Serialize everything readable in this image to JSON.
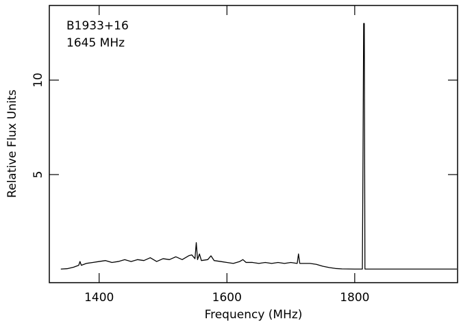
{
  "chart_data": {
    "type": "line",
    "annotations": [
      "B1933+16",
      "1645 MHz"
    ],
    "xlabel": "Frequency (MHz)",
    "ylabel": "Relative Flux Units",
    "x": [
      1340,
      1350,
      1360,
      1368,
      1370,
      1372,
      1380,
      1390,
      1400,
      1410,
      1420,
      1430,
      1440,
      1450,
      1460,
      1470,
      1480,
      1490,
      1500,
      1510,
      1520,
      1530,
      1540,
      1545,
      1550,
      1552,
      1554,
      1557,
      1560,
      1570,
      1575,
      1580,
      1590,
      1600,
      1610,
      1620,
      1625,
      1630,
      1640,
      1650,
      1660,
      1670,
      1680,
      1690,
      1700,
      1710,
      1712,
      1714,
      1720,
      1730,
      1740,
      1750,
      1760,
      1770,
      1780,
      1800,
      1812,
      1813,
      1814,
      1815,
      1816,
      1830,
      1900,
      1960
    ],
    "series": [
      {
        "color": "#000000",
        "values": [
          0.0,
          0.02,
          0.1,
          0.2,
          0.4,
          0.2,
          0.3,
          0.35,
          0.4,
          0.45,
          0.35,
          0.4,
          0.5,
          0.4,
          0.5,
          0.45,
          0.6,
          0.4,
          0.55,
          0.5,
          0.65,
          0.5,
          0.7,
          0.75,
          0.55,
          1.4,
          0.5,
          0.8,
          0.45,
          0.5,
          0.7,
          0.45,
          0.4,
          0.35,
          0.3,
          0.4,
          0.5,
          0.35,
          0.35,
          0.3,
          0.35,
          0.3,
          0.35,
          0.3,
          0.35,
          0.3,
          0.8,
          0.3,
          0.3,
          0.3,
          0.25,
          0.15,
          0.08,
          0.03,
          0.01,
          0.0,
          0.0,
          6.1,
          13.0,
          13.0,
          0.0,
          0.0,
          0.0,
          0.0
        ]
      }
    ],
    "xlim": [
      1322,
      1961
    ],
    "ylim": [
      -0.72,
      13.95
    ],
    "xticks": [
      1400,
      1600,
      1800
    ],
    "yticks": [
      5,
      10
    ],
    "grid": false
  }
}
